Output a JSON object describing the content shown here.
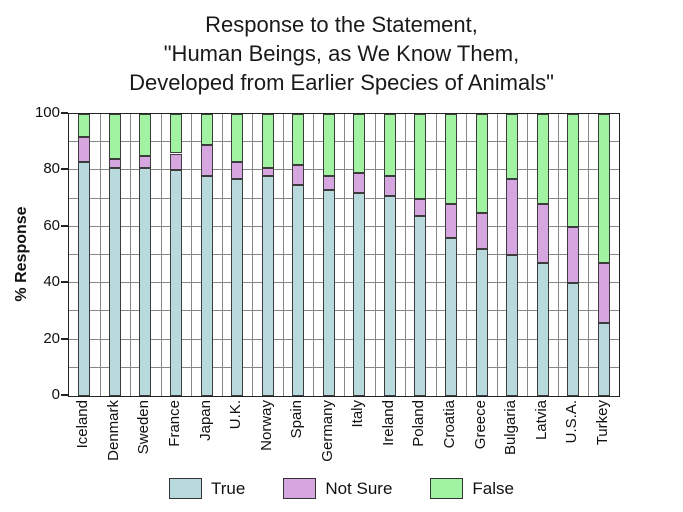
{
  "title": {
    "lines": [
      "Response to the Statement,",
      "\"Human Beings, as We Know Them,",
      "Developed from Earlier Species of Animals\""
    ]
  },
  "chart_data": {
    "type": "bar",
    "stacked": true,
    "title": "Response to the Statement, \"Human Beings, as We Know Them, Developed from Earlier Species of Animals\"",
    "ylabel": "% Response",
    "xlabel": "",
    "ylim": [
      0,
      100
    ],
    "ytick_labels": [
      "0",
      "20",
      "40",
      "60",
      "80",
      "100"
    ],
    "ytick_values": [
      0,
      20,
      40,
      60,
      80,
      100
    ],
    "grid": true,
    "grid_step": 10,
    "legend_position": "bottom",
    "categories": [
      "Iceland",
      "Denmark",
      "Sweden",
      "France",
      "Japan",
      "U.K.",
      "Norway",
      "Spain",
      "Germany",
      "Italy",
      "Ireland",
      "Poland",
      "Croatia",
      "Greece",
      "Bulgaria",
      "Latvia",
      "U.S.A.",
      "Turkey"
    ],
    "series": [
      {
        "name": "True",
        "color": "#b9dadd",
        "values": [
          83,
          81,
          81,
          80,
          78,
          77,
          78,
          75,
          73,
          72,
          71,
          64,
          56,
          52,
          50,
          47,
          40,
          26
        ]
      },
      {
        "name": "Not Sure",
        "color": "#d5a6e0",
        "values": [
          9,
          3,
          4,
          6,
          11,
          6,
          3,
          7,
          5,
          7,
          7,
          6,
          12,
          13,
          27,
          21,
          20,
          21
        ]
      },
      {
        "name": "False",
        "color": "#a1f3a1",
        "values": [
          8,
          16,
          15,
          14,
          11,
          17,
          19,
          18,
          22,
          21,
          22,
          30,
          32,
          35,
          23,
          32,
          40,
          53
        ]
      }
    ],
    "colors": {
      "grid": "#878787",
      "axis": "#222222",
      "bar_border": "#3c3c3c"
    }
  }
}
